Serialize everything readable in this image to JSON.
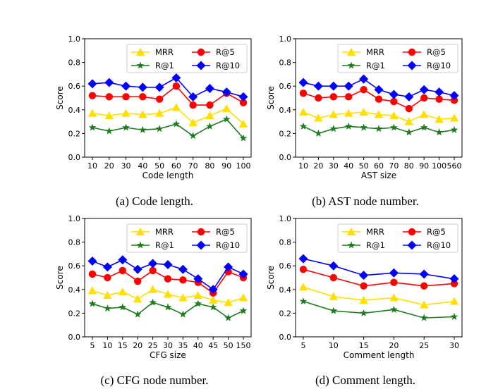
{
  "colors": {
    "MRR": "#ffe000",
    "R@1": "#1e7b1e",
    "R@5": "#ff0000",
    "R@10": "#0000ff"
  },
  "chart_data": [
    {
      "type": "line",
      "caption": "(a) Code length.",
      "xlabel": "Code length",
      "ylabel": "Score",
      "ylim": [
        0.0,
        1.0
      ],
      "yticks": [
        "0.0",
        "0.2",
        "0.4",
        "0.6",
        "0.8",
        "1.0"
      ],
      "categories": [
        "10",
        "20",
        "30",
        "40",
        "50",
        "60",
        "70",
        "80",
        "90",
        "100"
      ],
      "legend": "top-right",
      "series": [
        {
          "name": "MRR",
          "marker": "triangle",
          "values": [
            0.37,
            0.35,
            0.37,
            0.36,
            0.37,
            0.42,
            0.29,
            0.35,
            0.41,
            0.28
          ]
        },
        {
          "name": "R@5",
          "marker": "circle",
          "values": [
            0.52,
            0.51,
            0.51,
            0.51,
            0.49,
            0.6,
            0.44,
            0.44,
            0.54,
            0.46
          ]
        },
        {
          "name": "R@1",
          "marker": "star",
          "values": [
            0.25,
            0.22,
            0.25,
            0.23,
            0.24,
            0.28,
            0.18,
            0.26,
            0.32,
            0.16
          ]
        },
        {
          "name": "R@10",
          "marker": "diamond",
          "values": [
            0.62,
            0.63,
            0.6,
            0.59,
            0.59,
            0.67,
            0.51,
            0.58,
            0.55,
            0.51
          ]
        }
      ]
    },
    {
      "type": "line",
      "caption": "(b) AST node number.",
      "xlabel": "AST size",
      "ylabel": "Score",
      "ylim": [
        0.0,
        1.0
      ],
      "yticks": [
        "0.0",
        "0.2",
        "0.4",
        "0.6",
        "0.8",
        "1.0"
      ],
      "categories": [
        "10",
        "20",
        "30",
        "40",
        "50",
        "60",
        "70",
        "80",
        "90",
        "100",
        "560"
      ],
      "legend": "top-right",
      "series": [
        {
          "name": "MRR",
          "marker": "triangle",
          "values": [
            0.38,
            0.33,
            0.36,
            0.37,
            0.38,
            0.36,
            0.35,
            0.3,
            0.36,
            0.32,
            0.33
          ]
        },
        {
          "name": "R@5",
          "marker": "circle",
          "values": [
            0.54,
            0.5,
            0.51,
            0.51,
            0.57,
            0.49,
            0.47,
            0.41,
            0.5,
            0.49,
            0.48
          ]
        },
        {
          "name": "R@1",
          "marker": "star",
          "values": [
            0.26,
            0.2,
            0.24,
            0.26,
            0.25,
            0.24,
            0.25,
            0.21,
            0.25,
            0.21,
            0.23
          ]
        },
        {
          "name": "R@10",
          "marker": "diamond",
          "values": [
            0.63,
            0.6,
            0.6,
            0.6,
            0.66,
            0.57,
            0.53,
            0.51,
            0.57,
            0.55,
            0.52
          ]
        }
      ]
    },
    {
      "type": "line",
      "caption": "(c) CFG node number.",
      "xlabel": "CFG size",
      "ylabel": "Score",
      "ylim": [
        0.0,
        1.0
      ],
      "yticks": [
        "0.0",
        "0.2",
        "0.4",
        "0.6",
        "0.8",
        "1.0"
      ],
      "categories": [
        "5",
        "10",
        "15",
        "20",
        "25",
        "30",
        "35",
        "40",
        "45",
        "50",
        "150"
      ],
      "legend": "top-right",
      "series": [
        {
          "name": "MRR",
          "marker": "triangle",
          "values": [
            0.39,
            0.35,
            0.38,
            0.32,
            0.4,
            0.36,
            0.33,
            0.35,
            0.31,
            0.29,
            0.33
          ]
        },
        {
          "name": "R@5",
          "marker": "circle",
          "values": [
            0.53,
            0.5,
            0.56,
            0.47,
            0.56,
            0.49,
            0.48,
            0.46,
            0.37,
            0.55,
            0.5
          ]
        },
        {
          "name": "R@1",
          "marker": "star",
          "values": [
            0.28,
            0.24,
            0.25,
            0.19,
            0.29,
            0.25,
            0.19,
            0.28,
            0.25,
            0.16,
            0.22
          ]
        },
        {
          "name": "R@10",
          "marker": "diamond",
          "values": [
            0.64,
            0.59,
            0.65,
            0.57,
            0.62,
            0.61,
            0.57,
            0.49,
            0.4,
            0.59,
            0.53
          ]
        }
      ]
    },
    {
      "type": "line",
      "caption": "(d) Comment length.",
      "xlabel": "Comment length",
      "ylabel": "Score",
      "ylim": [
        0.0,
        1.0
      ],
      "yticks": [
        "0.0",
        "0.2",
        "0.4",
        "0.6",
        "0.8",
        "1.0"
      ],
      "categories": [
        "5",
        "10",
        "15",
        "20",
        "25",
        "30"
      ],
      "legend": "top-right",
      "series": [
        {
          "name": "MRR",
          "marker": "triangle",
          "values": [
            0.42,
            0.34,
            0.31,
            0.33,
            0.27,
            0.3
          ]
        },
        {
          "name": "R@5",
          "marker": "circle",
          "values": [
            0.57,
            0.5,
            0.43,
            0.46,
            0.43,
            0.45
          ]
        },
        {
          "name": "R@1",
          "marker": "star",
          "values": [
            0.3,
            0.22,
            0.2,
            0.23,
            0.16,
            0.17
          ]
        },
        {
          "name": "R@10",
          "marker": "diamond",
          "values": [
            0.66,
            0.6,
            0.52,
            0.54,
            0.53,
            0.49
          ]
        }
      ]
    }
  ]
}
